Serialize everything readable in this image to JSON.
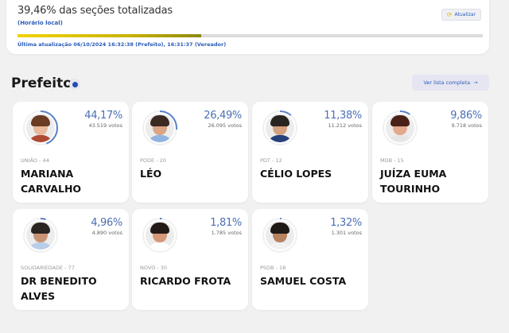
{
  "status": {
    "title": "39,46% das seções totalizadas",
    "subtitle": "(Horário local)",
    "progress_pct": 39.46,
    "last_update": "Última atualização 06/10/2024 16:32:38 (Prefeito), 16:31:37 (Vereador)",
    "update_button": "Atualizar",
    "update_icon": "refresh-icon"
  },
  "section": {
    "title": "Prefeito",
    "info_icon": "info-icon",
    "full_list_button": "Ver lista completa",
    "full_list_arrow": "→"
  },
  "colors": {
    "accent_blue": "#4a6fb5",
    "link_blue": "#2a5cb8",
    "progress_yellow": "#f2d400"
  },
  "candidates": [
    {
      "party": "UNIÃO - 44",
      "name": "MARIANA CARVALHO",
      "pct": "44,17%",
      "votes": "43.519 votos",
      "share": 44.17,
      "hair": "#6b3b22",
      "skin": "#e8b99a",
      "shirt": "#b04a35"
    },
    {
      "party": "PODE - 20",
      "name": "LÉO",
      "pct": "26,49%",
      "votes": "26.095 votos",
      "share": 26.49,
      "hair": "#3a2a22",
      "skin": "#d9a585",
      "shirt": "#8fb4e0"
    },
    {
      "party": "PDT - 12",
      "name": "CÉLIO LOPES",
      "pct": "11,38%",
      "votes": "11.212 votos",
      "share": 11.38,
      "hair": "#2a2420",
      "skin": "#d4a07e",
      "shirt": "#24417a"
    },
    {
      "party": "MDB - 15",
      "name": "JUÍZA EUMA TOURINHO",
      "pct": "9,86%",
      "votes": "9.718 votos",
      "share": 9.86,
      "hair": "#4a2018",
      "skin": "#e3a98c",
      "shirt": "#e6e6e6"
    },
    {
      "party": "SOLIDARIEDADE - 77",
      "name": "DR BENEDITO ALVES",
      "pct": "4,96%",
      "votes": "4.890 votos",
      "share": 4.96,
      "hair": "#2b2522",
      "skin": "#c99474",
      "shirt": "#b8cde8"
    },
    {
      "party": "NOVO - 30",
      "name": "RICARDO FROTA",
      "pct": "1,81%",
      "votes": "1.785 votos",
      "share": 1.81,
      "hair": "#221a16",
      "skin": "#d69878",
      "shirt": "#ffffff"
    },
    {
      "party": "PSDB - 18",
      "name": "SAMUEL COSTA",
      "pct": "1,32%",
      "votes": "1.301 votos",
      "share": 1.32,
      "hair": "#1f1814",
      "skin": "#b7825f",
      "shirt": "#f2f2f2"
    }
  ]
}
